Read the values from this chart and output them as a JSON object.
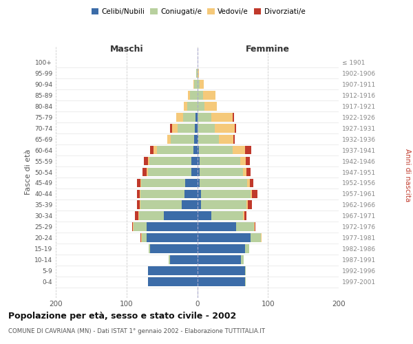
{
  "age_groups": [
    "0-4",
    "5-9",
    "10-14",
    "15-19",
    "20-24",
    "25-29",
    "30-34",
    "35-39",
    "40-44",
    "45-49",
    "50-54",
    "55-59",
    "60-64",
    "65-69",
    "70-74",
    "75-79",
    "80-84",
    "85-89",
    "90-94",
    "95-99",
    "100+"
  ],
  "birth_years": [
    "1997-2001",
    "1992-1996",
    "1987-1991",
    "1982-1986",
    "1977-1981",
    "1972-1976",
    "1967-1971",
    "1962-1966",
    "1957-1961",
    "1952-1956",
    "1947-1951",
    "1942-1946",
    "1937-1941",
    "1932-1936",
    "1927-1931",
    "1922-1926",
    "1917-1921",
    "1912-1916",
    "1907-1911",
    "1902-1906",
    "≤ 1901"
  ],
  "males": {
    "celibi": [
      70,
      70,
      38,
      67,
      72,
      72,
      47,
      22,
      18,
      17,
      8,
      8,
      5,
      4,
      3,
      2,
      0,
      0,
      0,
      0,
      0
    ],
    "coniugati": [
      0,
      0,
      2,
      2,
      6,
      18,
      35,
      58,
      62,
      62,
      62,
      60,
      52,
      33,
      25,
      18,
      14,
      10,
      4,
      1,
      0
    ],
    "vedovi": [
      0,
      0,
      0,
      0,
      1,
      1,
      1,
      1,
      1,
      1,
      2,
      2,
      5,
      5,
      8,
      10,
      5,
      3,
      1,
      0,
      0
    ],
    "divorziati": [
      0,
      0,
      0,
      0,
      1,
      1,
      5,
      4,
      4,
      5,
      5,
      5,
      5,
      0,
      2,
      0,
      0,
      0,
      0,
      0,
      0
    ]
  },
  "females": {
    "nubili": [
      68,
      68,
      62,
      68,
      75,
      55,
      20,
      5,
      5,
      3,
      3,
      3,
      2,
      1,
      0,
      0,
      0,
      0,
      0,
      0,
      0
    ],
    "coniugate": [
      1,
      1,
      4,
      5,
      15,
      25,
      45,
      65,
      70,
      68,
      62,
      58,
      48,
      30,
      25,
      20,
      10,
      8,
      3,
      0,
      0
    ],
    "vedove": [
      0,
      0,
      0,
      0,
      1,
      1,
      2,
      2,
      2,
      3,
      5,
      8,
      18,
      20,
      28,
      30,
      18,
      18,
      6,
      2,
      0
    ],
    "divorziate": [
      0,
      0,
      0,
      0,
      0,
      1,
      3,
      5,
      8,
      5,
      5,
      5,
      8,
      2,
      2,
      2,
      0,
      0,
      0,
      0,
      0
    ]
  },
  "colors": {
    "celibi": "#3c6ca8",
    "coniugati": "#b8d09e",
    "vedovi": "#f5c97a",
    "divorziati": "#c0392b"
  },
  "xlim": 200,
  "title": "Popolazione per età, sesso e stato civile - 2002",
  "subtitle": "COMUNE DI CAVRIANA (MN) - Dati ISTAT 1° gennaio 2002 - Elaborazione TUTTITALIA.IT",
  "ylabel_left": "Fasce di età",
  "ylabel_right": "Anni di nascita",
  "xlabel_left": "Maschi",
  "xlabel_right": "Femmine",
  "bg_color": "#ffffff",
  "grid_color": "#cccccc"
}
